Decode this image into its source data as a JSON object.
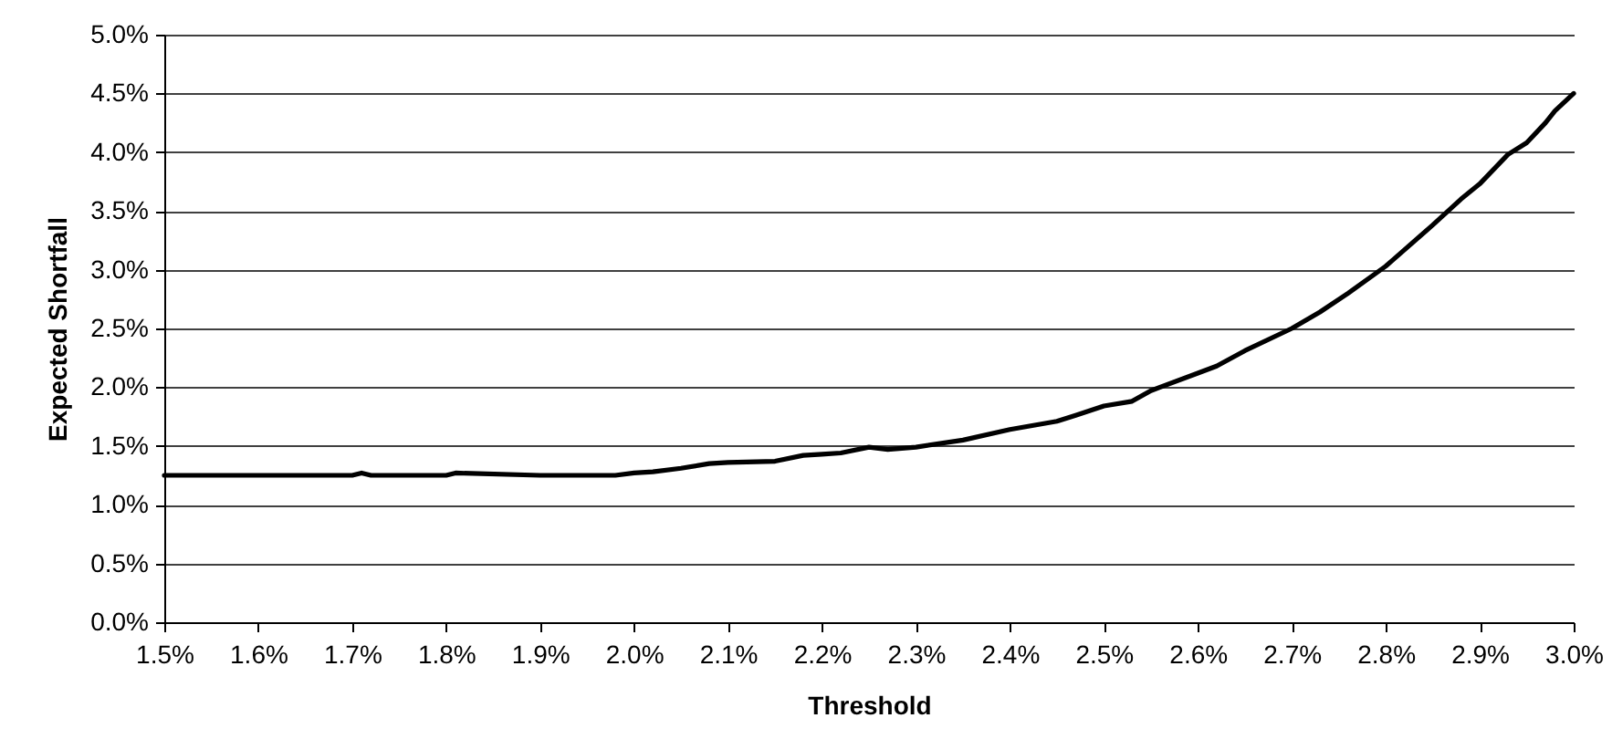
{
  "chart_data": {
    "type": "line",
    "xlabel": "Threshold",
    "ylabel": "Expected Shortfall",
    "x": [
      1.5,
      1.6,
      1.7,
      1.71,
      1.72,
      1.8,
      1.81,
      1.9,
      1.98,
      2.0,
      2.02,
      2.05,
      2.08,
      2.1,
      2.15,
      2.18,
      2.2,
      2.22,
      2.25,
      2.27,
      2.3,
      2.35,
      2.4,
      2.45,
      2.47,
      2.5,
      2.53,
      2.55,
      2.6,
      2.62,
      2.65,
      2.7,
      2.73,
      2.76,
      2.8,
      2.85,
      2.88,
      2.9,
      2.93,
      2.95,
      2.97,
      2.98,
      3.0
    ],
    "series": [
      {
        "color": "#000000",
        "values": [
          1.25,
          1.25,
          1.25,
          1.27,
          1.25,
          1.25,
          1.27,
          1.25,
          1.25,
          1.27,
          1.28,
          1.31,
          1.35,
          1.36,
          1.37,
          1.42,
          1.43,
          1.44,
          1.49,
          1.47,
          1.49,
          1.55,
          1.64,
          1.71,
          1.76,
          1.84,
          1.88,
          1.97,
          2.12,
          2.18,
          2.31,
          2.5,
          2.64,
          2.8,
          3.03,
          3.38,
          3.6,
          3.73,
          3.98,
          4.08,
          4.25,
          4.35,
          4.5
        ]
      }
    ],
    "xlim": [
      1.5,
      3.0
    ],
    "ylim": [
      0,
      5
    ],
    "xticks": [
      {
        "value": 1.5,
        "label": "1.5%"
      },
      {
        "value": 1.6,
        "label": "1.6%"
      },
      {
        "value": 1.7,
        "label": "1.7%"
      },
      {
        "value": 1.8,
        "label": "1.8%"
      },
      {
        "value": 1.9,
        "label": "1.9%"
      },
      {
        "value": 2.0,
        "label": "2.0%"
      },
      {
        "value": 2.1,
        "label": "2.1%"
      },
      {
        "value": 2.2,
        "label": "2.2%"
      },
      {
        "value": 2.3,
        "label": "2.3%"
      },
      {
        "value": 2.4,
        "label": "2.4%"
      },
      {
        "value": 2.5,
        "label": "2.5%"
      },
      {
        "value": 2.6,
        "label": "2.6%"
      },
      {
        "value": 2.7,
        "label": "2.7%"
      },
      {
        "value": 2.8,
        "label": "2.8%"
      },
      {
        "value": 2.9,
        "label": "2.9%"
      },
      {
        "value": 3.0,
        "label": "3.0%"
      }
    ],
    "yticks": [
      {
        "value": 0,
        "label": "0.0%"
      },
      {
        "value": 0.5,
        "label": "0.5%"
      },
      {
        "value": 1,
        "label": "1.0%"
      },
      {
        "value": 1.5,
        "label": "1.5%"
      },
      {
        "value": 2,
        "label": "2.0%"
      },
      {
        "value": 2.5,
        "label": "2.5%"
      },
      {
        "value": 3,
        "label": "3.0%"
      },
      {
        "value": 3.5,
        "label": "3.5%"
      },
      {
        "value": 4,
        "label": "4.0%"
      },
      {
        "value": 4.5,
        "label": "4.5%"
      },
      {
        "value": 5,
        "label": "5.0%"
      }
    ],
    "grid": "y",
    "marker": "none",
    "line_style": "solid"
  }
}
